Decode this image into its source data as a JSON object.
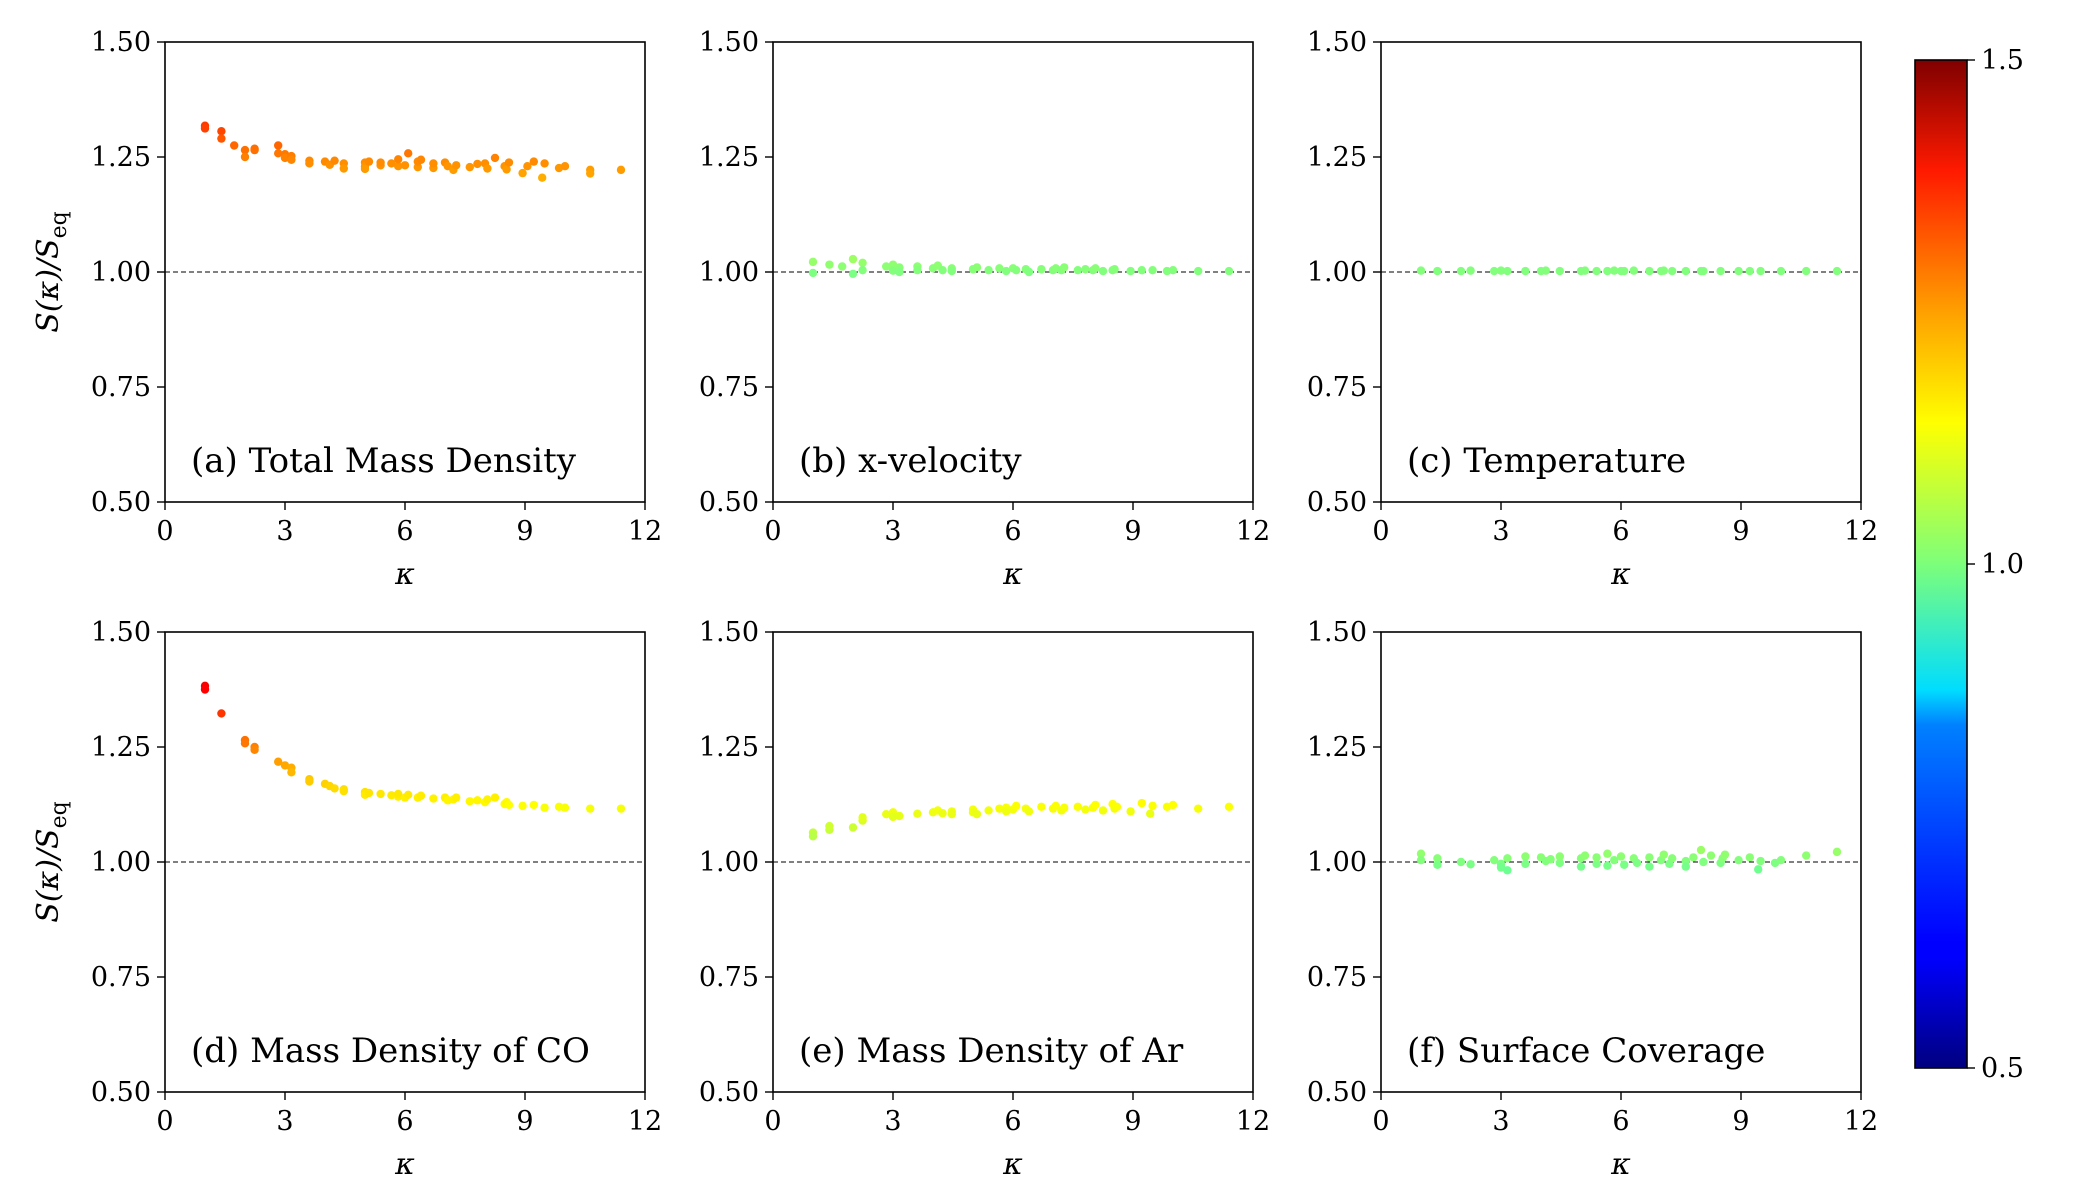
{
  "figure": {
    "colorbar": {
      "min": 0.5,
      "max": 1.5,
      "ticks": [
        "1.5",
        "1.0",
        "0.5"
      ],
      "colormap": "jet"
    }
  },
  "chart_data": [
    {
      "type": "scatter",
      "label": "(a) Total Mass Density",
      "xlabel": "κ",
      "ylabel": "S(κ)/S_eq",
      "ylabel_main": "S(κ)/S",
      "ylabel_sub": "eq",
      "xlim": [
        0,
        12
      ],
      "ylim": [
        0.5,
        1.5
      ],
      "xticks": [
        "0",
        "3",
        "6",
        "9",
        "12"
      ],
      "yticks": [
        "0.50",
        "0.75",
        "1.00",
        "1.25",
        "1.50"
      ],
      "reference_line": 1.0,
      "points": [
        [
          1.0,
          1.318
        ],
        [
          1.0,
          1.312
        ],
        [
          1.41,
          1.306
        ],
        [
          1.41,
          1.29
        ],
        [
          1.73,
          1.275
        ],
        [
          2.0,
          1.265
        ],
        [
          2.0,
          1.25
        ],
        [
          2.24,
          1.268
        ],
        [
          2.24,
          1.265
        ],
        [
          2.83,
          1.275
        ],
        [
          2.83,
          1.258
        ],
        [
          3.0,
          1.256
        ],
        [
          3.0,
          1.248
        ],
        [
          3.16,
          1.252
        ],
        [
          3.16,
          1.244
        ],
        [
          3.61,
          1.242
        ],
        [
          3.61,
          1.236
        ],
        [
          4.0,
          1.24
        ],
        [
          4.12,
          1.233
        ],
        [
          4.24,
          1.242
        ],
        [
          4.47,
          1.236
        ],
        [
          4.47,
          1.225
        ],
        [
          5.0,
          1.238
        ],
        [
          5.0,
          1.23
        ],
        [
          5.0,
          1.224
        ],
        [
          5.1,
          1.24
        ],
        [
          5.39,
          1.232
        ],
        [
          5.39,
          1.238
        ],
        [
          5.66,
          1.236
        ],
        [
          5.83,
          1.23
        ],
        [
          5.83,
          1.245
        ],
        [
          6.0,
          1.232
        ],
        [
          6.08,
          1.258
        ],
        [
          6.32,
          1.228
        ],
        [
          6.32,
          1.24
        ],
        [
          6.4,
          1.244
        ],
        [
          6.71,
          1.226
        ],
        [
          6.71,
          1.236
        ],
        [
          7.0,
          1.238
        ],
        [
          7.07,
          1.23
        ],
        [
          7.21,
          1.222
        ],
        [
          7.28,
          1.232
        ],
        [
          7.62,
          1.228
        ],
        [
          7.81,
          1.235
        ],
        [
          8.0,
          1.236
        ],
        [
          8.06,
          1.225
        ],
        [
          8.25,
          1.248
        ],
        [
          8.49,
          1.23
        ],
        [
          8.54,
          1.223
        ],
        [
          8.6,
          1.238
        ],
        [
          8.94,
          1.215
        ],
        [
          9.06,
          1.23
        ],
        [
          9.22,
          1.24
        ],
        [
          9.43,
          1.205
        ],
        [
          9.49,
          1.236
        ],
        [
          9.85,
          1.226
        ],
        [
          10.0,
          1.23
        ],
        [
          10.63,
          1.222
        ],
        [
          10.63,
          1.214
        ],
        [
          11.4,
          1.222
        ]
      ]
    },
    {
      "type": "scatter",
      "label": "(b) x-velocity",
      "xlabel": "κ",
      "ylabel": "",
      "xlim": [
        0,
        12
      ],
      "ylim": [
        0.5,
        1.5
      ],
      "xticks": [
        "0",
        "3",
        "6",
        "9",
        "12"
      ],
      "yticks": [
        "0.50",
        "0.75",
        "1.00",
        "1.25",
        "1.50"
      ],
      "reference_line": 1.0,
      "points": [
        [
          1.0,
          1.022
        ],
        [
          1.0,
          0.998
        ],
        [
          1.41,
          1.016
        ],
        [
          1.73,
          1.012
        ],
        [
          2.0,
          1.028
        ],
        [
          2.0,
          0.996
        ],
        [
          2.24,
          1.02
        ],
        [
          2.24,
          1.004
        ],
        [
          2.83,
          1.012
        ],
        [
          3.0,
          1.016
        ],
        [
          3.0,
          1.003
        ],
        [
          3.16,
          1.01
        ],
        [
          3.16,
          1.0
        ],
        [
          3.61,
          1.012
        ],
        [
          3.61,
          1.004
        ],
        [
          4.0,
          1.008
        ],
        [
          4.12,
          1.014
        ],
        [
          4.24,
          1.004
        ],
        [
          4.47,
          1.008
        ],
        [
          4.47,
          1.002
        ],
        [
          5.0,
          1.006
        ],
        [
          5.1,
          1.01
        ],
        [
          5.39,
          1.004
        ],
        [
          5.66,
          1.008
        ],
        [
          5.83,
          1.002
        ],
        [
          6.0,
          1.008
        ],
        [
          6.08,
          1.004
        ],
        [
          6.32,
          1.006
        ],
        [
          6.4,
          1.0
        ],
        [
          6.71,
          1.006
        ],
        [
          7.0,
          1.004
        ],
        [
          7.07,
          1.008
        ],
        [
          7.21,
          1.004
        ],
        [
          7.28,
          1.01
        ],
        [
          7.62,
          1.004
        ],
        [
          7.81,
          1.006
        ],
        [
          8.0,
          1.004
        ],
        [
          8.06,
          1.008
        ],
        [
          8.25,
          1.002
        ],
        [
          8.49,
          1.004
        ],
        [
          8.54,
          1.006
        ],
        [
          8.94,
          1.002
        ],
        [
          9.22,
          1.004
        ],
        [
          9.49,
          1.004
        ],
        [
          9.85,
          1.002
        ],
        [
          10.0,
          1.004
        ],
        [
          10.63,
          1.002
        ],
        [
          11.4,
          1.002
        ]
      ]
    },
    {
      "type": "scatter",
      "label": "(c) Temperature",
      "xlabel": "κ",
      "ylabel": "",
      "xlim": [
        0,
        12
      ],
      "ylim": [
        0.5,
        1.5
      ],
      "xticks": [
        "0",
        "3",
        "6",
        "9",
        "12"
      ],
      "yticks": [
        "0.50",
        "0.75",
        "1.00",
        "1.25",
        "1.50"
      ],
      "reference_line": 1.0,
      "points": [
        [
          1.0,
          1.003
        ],
        [
          1.41,
          1.002
        ],
        [
          2.0,
          1.002
        ],
        [
          2.24,
          1.003
        ],
        [
          2.83,
          1.002
        ],
        [
          3.0,
          1.003
        ],
        [
          3.16,
          1.002
        ],
        [
          3.61,
          1.002
        ],
        [
          4.0,
          1.002
        ],
        [
          4.12,
          1.003
        ],
        [
          4.47,
          1.002
        ],
        [
          5.0,
          1.002
        ],
        [
          5.1,
          1.003
        ],
        [
          5.39,
          1.002
        ],
        [
          5.66,
          1.002
        ],
        [
          5.83,
          1.003
        ],
        [
          6.0,
          1.002
        ],
        [
          6.08,
          1.002
        ],
        [
          6.32,
          1.003
        ],
        [
          6.71,
          1.002
        ],
        [
          7.0,
          1.002
        ],
        [
          7.07,
          1.003
        ],
        [
          7.28,
          1.002
        ],
        [
          7.62,
          1.002
        ],
        [
          8.0,
          1.002
        ],
        [
          8.06,
          1.002
        ],
        [
          8.49,
          1.002
        ],
        [
          8.94,
          1.002
        ],
        [
          9.22,
          1.002
        ],
        [
          9.49,
          1.002
        ],
        [
          10.0,
          1.002
        ],
        [
          10.63,
          1.002
        ],
        [
          11.4,
          1.002
        ]
      ]
    },
    {
      "type": "scatter",
      "label": "(d) Mass Density of CO",
      "xlabel": "κ",
      "ylabel": "S(κ)/S_eq",
      "ylabel_main": "S(κ)/S",
      "ylabel_sub": "eq",
      "xlim": [
        0,
        12
      ],
      "ylim": [
        0.5,
        1.5
      ],
      "xticks": [
        "0",
        "3",
        "6",
        "9",
        "12"
      ],
      "yticks": [
        "0.50",
        "0.75",
        "1.00",
        "1.25",
        "1.50"
      ],
      "reference_line": 1.0,
      "points": [
        [
          1.0,
          1.383
        ],
        [
          1.0,
          1.375
        ],
        [
          1.41,
          1.323
        ],
        [
          2.0,
          1.265
        ],
        [
          2.0,
          1.258
        ],
        [
          2.24,
          1.25
        ],
        [
          2.24,
          1.244
        ],
        [
          2.83,
          1.218
        ],
        [
          3.0,
          1.21
        ],
        [
          3.16,
          1.205
        ],
        [
          3.16,
          1.195
        ],
        [
          3.61,
          1.18
        ],
        [
          3.61,
          1.175
        ],
        [
          4.0,
          1.17
        ],
        [
          4.12,
          1.165
        ],
        [
          4.24,
          1.16
        ],
        [
          4.47,
          1.158
        ],
        [
          4.47,
          1.154
        ],
        [
          5.0,
          1.152
        ],
        [
          5.0,
          1.146
        ],
        [
          5.1,
          1.15
        ],
        [
          5.39,
          1.148
        ],
        [
          5.66,
          1.145
        ],
        [
          5.83,
          1.142
        ],
        [
          5.83,
          1.148
        ],
        [
          6.0,
          1.14
        ],
        [
          6.08,
          1.146
        ],
        [
          6.32,
          1.14
        ],
        [
          6.4,
          1.144
        ],
        [
          6.71,
          1.138
        ],
        [
          7.0,
          1.14
        ],
        [
          7.07,
          1.134
        ],
        [
          7.21,
          1.136
        ],
        [
          7.28,
          1.14
        ],
        [
          7.62,
          1.132
        ],
        [
          7.81,
          1.134
        ],
        [
          8.0,
          1.13
        ],
        [
          8.06,
          1.136
        ],
        [
          8.25,
          1.14
        ],
        [
          8.49,
          1.126
        ],
        [
          8.54,
          1.13
        ],
        [
          8.6,
          1.124
        ],
        [
          8.94,
          1.122
        ],
        [
          9.22,
          1.124
        ],
        [
          9.49,
          1.118
        ],
        [
          9.85,
          1.12
        ],
        [
          10.0,
          1.118
        ],
        [
          10.63,
          1.116
        ],
        [
          11.4,
          1.116
        ]
      ]
    },
    {
      "type": "scatter",
      "label": "(e) Mass Density of Ar",
      "xlabel": "κ",
      "ylabel": "",
      "xlim": [
        0,
        12
      ],
      "ylim": [
        0.5,
        1.5
      ],
      "xticks": [
        "0",
        "3",
        "6",
        "9",
        "12"
      ],
      "yticks": [
        "0.50",
        "0.75",
        "1.00",
        "1.25",
        "1.50"
      ],
      "reference_line": 1.0,
      "points": [
        [
          1.0,
          1.064
        ],
        [
          1.0,
          1.056
        ],
        [
          1.41,
          1.07
        ],
        [
          1.41,
          1.078
        ],
        [
          2.0,
          1.075
        ],
        [
          2.24,
          1.09
        ],
        [
          2.24,
          1.097
        ],
        [
          2.83,
          1.104
        ],
        [
          3.0,
          1.108
        ],
        [
          3.0,
          1.098
        ],
        [
          3.16,
          1.1
        ],
        [
          3.61,
          1.105
        ],
        [
          4.0,
          1.108
        ],
        [
          4.12,
          1.112
        ],
        [
          4.24,
          1.106
        ],
        [
          4.47,
          1.11
        ],
        [
          4.47,
          1.104
        ],
        [
          5.0,
          1.114
        ],
        [
          5.0,
          1.108
        ],
        [
          5.1,
          1.104
        ],
        [
          5.39,
          1.112
        ],
        [
          5.66,
          1.116
        ],
        [
          5.83,
          1.118
        ],
        [
          5.83,
          1.11
        ],
        [
          6.0,
          1.114
        ],
        [
          6.08,
          1.122
        ],
        [
          6.32,
          1.116
        ],
        [
          6.4,
          1.11
        ],
        [
          6.71,
          1.12
        ],
        [
          7.0,
          1.116
        ],
        [
          7.07,
          1.122
        ],
        [
          7.21,
          1.112
        ],
        [
          7.28,
          1.118
        ],
        [
          7.62,
          1.12
        ],
        [
          7.81,
          1.114
        ],
        [
          8.0,
          1.118
        ],
        [
          8.06,
          1.124
        ],
        [
          8.25,
          1.112
        ],
        [
          8.49,
          1.126
        ],
        [
          8.54,
          1.116
        ],
        [
          8.6,
          1.12
        ],
        [
          8.94,
          1.11
        ],
        [
          9.22,
          1.128
        ],
        [
          9.43,
          1.105
        ],
        [
          9.49,
          1.122
        ],
        [
          9.85,
          1.12
        ],
        [
          10.0,
          1.124
        ],
        [
          10.63,
          1.116
        ],
        [
          11.4,
          1.12
        ]
      ]
    },
    {
      "type": "scatter",
      "label": "(f) Surface Coverage",
      "xlabel": "κ",
      "ylabel": "",
      "xlim": [
        0,
        12
      ],
      "ylim": [
        0.5,
        1.5
      ],
      "xticks": [
        "0",
        "3",
        "6",
        "9",
        "12"
      ],
      "yticks": [
        "0.50",
        "0.75",
        "1.00",
        "1.25",
        "1.50"
      ],
      "reference_line": 1.0,
      "points": [
        [
          1.0,
          1.018
        ],
        [
          1.0,
          1.004
        ],
        [
          1.41,
          1.008
        ],
        [
          1.41,
          0.994
        ],
        [
          2.0,
          1.0
        ],
        [
          2.24,
          0.995
        ],
        [
          2.83,
          1.004
        ],
        [
          3.0,
          0.996
        ],
        [
          3.0,
          0.988
        ],
        [
          3.16,
          1.008
        ],
        [
          3.16,
          0.982
        ],
        [
          3.61,
          1.012
        ],
        [
          3.61,
          0.996
        ],
        [
          4.0,
          1.01
        ],
        [
          4.12,
          1.002
        ],
        [
          4.24,
          1.006
        ],
        [
          4.47,
          0.998
        ],
        [
          4.47,
          1.012
        ],
        [
          5.0,
          1.008
        ],
        [
          5.0,
          0.99
        ],
        [
          5.1,
          1.014
        ],
        [
          5.39,
          0.996
        ],
        [
          5.39,
          1.01
        ],
        [
          5.66,
          1.018
        ],
        [
          5.66,
          0.992
        ],
        [
          5.83,
          1.004
        ],
        [
          6.0,
          1.012
        ],
        [
          6.08,
          0.994
        ],
        [
          6.32,
          1.008
        ],
        [
          6.4,
          0.998
        ],
        [
          6.71,
          1.01
        ],
        [
          6.71,
          0.99
        ],
        [
          7.0,
          1.004
        ],
        [
          7.07,
          1.016
        ],
        [
          7.21,
          0.996
        ],
        [
          7.28,
          1.008
        ],
        [
          7.62,
          1.002
        ],
        [
          7.62,
          0.99
        ],
        [
          7.81,
          1.01
        ],
        [
          8.0,
          1.026
        ],
        [
          8.06,
          1.0
        ],
        [
          8.25,
          1.014
        ],
        [
          8.49,
          0.998
        ],
        [
          8.54,
          1.008
        ],
        [
          8.6,
          1.016
        ],
        [
          8.94,
          1.004
        ],
        [
          9.22,
          1.01
        ],
        [
          9.43,
          0.984
        ],
        [
          9.49,
          1.002
        ],
        [
          9.85,
          0.998
        ],
        [
          10.0,
          1.004
        ],
        [
          10.63,
          1.014
        ],
        [
          11.4,
          1.022
        ]
      ]
    }
  ]
}
